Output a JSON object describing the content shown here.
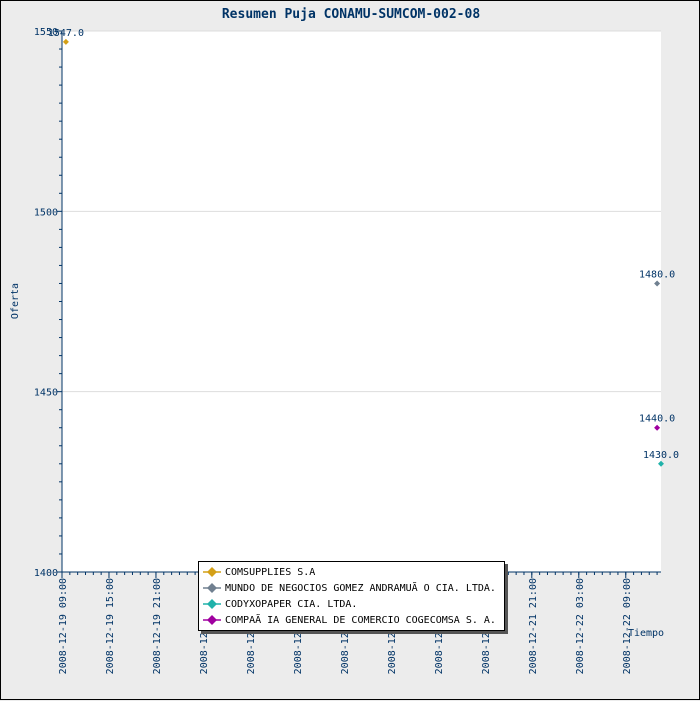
{
  "chart_data": {
    "type": "scatter",
    "title": "Resumen Puja CONAMU-SUMCOM-002-08",
    "xlabel": "Tiempo",
    "ylabel": "Oferta",
    "ylim": [
      1400,
      1550
    ],
    "y_ticks": [
      "1400",
      "1450",
      "1500",
      "1550"
    ],
    "x_tick_labels": [
      "2008-12-19 09:00",
      "2008-12-19 15:00",
      "2008-12-19 21:00",
      "2008-12-20 03:00",
      "2008-12-20 09:00",
      "2008-12-20 15:00",
      "2008-12-20 21:00",
      "2008-12-21 03:00",
      "2008-12-21 09:00",
      "2008-12-21 15:00",
      "2008-12-21 21:00",
      "2008-12-22 03:00",
      "2008-12-22 09:00"
    ],
    "x_range": [
      "2008-12-19 09:00",
      "2008-12-22 13:30"
    ],
    "grid": true,
    "legend_position": "bottom-center",
    "series": [
      {
        "name": "COMSUPPLIES S.A",
        "color": "#d4a017",
        "points": [
          {
            "x": "2008-12-19 09:30",
            "y": 1547.0,
            "label": "1547.0"
          }
        ]
      },
      {
        "name": "MUNDO DE NEGOCIOS GOMEZ ANDRAMUÃ O CIA. LTDA.",
        "color": "#708090",
        "points": [
          {
            "x": "2008-12-22 13:00",
            "y": 1480.0,
            "label": "1480.0"
          }
        ]
      },
      {
        "name": "CODYXOPAPER CIA. LTDA.",
        "color": "#20b2aa",
        "points": [
          {
            "x": "2008-12-22 13:30",
            "y": 1430.0,
            "label": "1430.0"
          }
        ]
      },
      {
        "name": "COMPAÃ IA GENERAL DE COMERCIO COGECOMSA S. A.",
        "color": "#a000a0",
        "points": [
          {
            "x": "2008-12-22 13:00",
            "y": 1440.0,
            "label": "1440.0"
          }
        ]
      }
    ]
  }
}
